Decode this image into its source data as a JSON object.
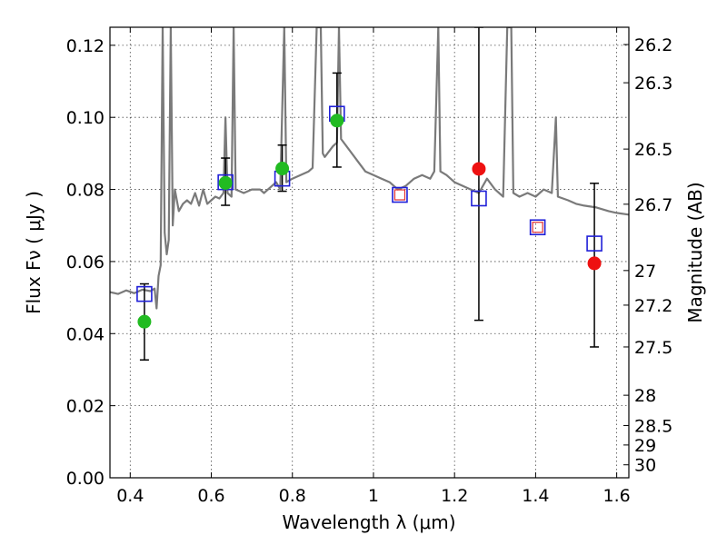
{
  "chart_data": {
    "type": "scatter",
    "title": "",
    "xlabel": "Wavelength  λ (μm)",
    "ylabel": "Flux  Fν  ( μJy )",
    "y2label": "Magnitude (AB)",
    "xlim": [
      0.35,
      1.63
    ],
    "ylim": [
      0.0,
      0.125
    ],
    "grid": true,
    "x_ticks": [
      0.4,
      0.6,
      0.8,
      1.0,
      1.2,
      1.4,
      1.6
    ],
    "x_tick_labels": [
      "0.4",
      "0.6",
      "0.8",
      "1",
      "1.2",
      "1.4",
      "1.6"
    ],
    "y_ticks": [
      0.0,
      0.02,
      0.04,
      0.06,
      0.08,
      0.1,
      0.12
    ],
    "y_tick_labels": [
      "0.00",
      "0.02",
      "0.04",
      "0.06",
      "0.08",
      "0.10",
      "0.12"
    ],
    "y2_ticks": [
      {
        "label": "26.2",
        "flux": 0.1202
      },
      {
        "label": "26.3",
        "flux": 0.1096
      },
      {
        "label": "26.5",
        "flux": 0.0912
      },
      {
        "label": "26.7",
        "flux": 0.0759
      },
      {
        "label": "27",
        "flux": 0.0575
      },
      {
        "label": "27.2",
        "flux": 0.0479
      },
      {
        "label": "27.5",
        "flux": 0.0363
      },
      {
        "label": "28",
        "flux": 0.0229
      },
      {
        "label": "28.5",
        "flux": 0.0145
      },
      {
        "label": "29",
        "flux": 0.0091
      },
      {
        "label": "30",
        "flux": 0.0036
      }
    ],
    "series": [
      {
        "kind": "line",
        "color": "#7a7a7a",
        "points": [
          [
            0.35,
            0.0515
          ],
          [
            0.37,
            0.051
          ],
          [
            0.39,
            0.052
          ],
          [
            0.41,
            0.0512
          ],
          [
            0.43,
            0.0522
          ],
          [
            0.45,
            0.0518
          ],
          [
            0.46,
            0.0525
          ],
          [
            0.465,
            0.047
          ],
          [
            0.47,
            0.056
          ],
          [
            0.475,
            0.059
          ],
          [
            0.48,
            0.125
          ],
          [
            0.485,
            0.068
          ],
          [
            0.49,
            0.062
          ],
          [
            0.495,
            0.066
          ],
          [
            0.5,
            0.125
          ],
          [
            0.505,
            0.07
          ],
          [
            0.51,
            0.08
          ],
          [
            0.52,
            0.074
          ],
          [
            0.53,
            0.076
          ],
          [
            0.54,
            0.077
          ],
          [
            0.55,
            0.076
          ],
          [
            0.56,
            0.079
          ],
          [
            0.57,
            0.0755
          ],
          [
            0.58,
            0.08
          ],
          [
            0.59,
            0.076
          ],
          [
            0.6,
            0.077
          ],
          [
            0.61,
            0.078
          ],
          [
            0.62,
            0.0775
          ],
          [
            0.63,
            0.079
          ],
          [
            0.635,
            0.1
          ],
          [
            0.64,
            0.079
          ],
          [
            0.65,
            0.078
          ],
          [
            0.655,
            0.125
          ],
          [
            0.66,
            0.08
          ],
          [
            0.67,
            0.0795
          ],
          [
            0.68,
            0.079
          ],
          [
            0.7,
            0.08
          ],
          [
            0.72,
            0.08
          ],
          [
            0.73,
            0.079
          ],
          [
            0.75,
            0.081
          ],
          [
            0.76,
            0.082
          ],
          [
            0.77,
            0.08
          ],
          [
            0.78,
            0.125
          ],
          [
            0.785,
            0.082
          ],
          [
            0.8,
            0.083
          ],
          [
            0.82,
            0.084
          ],
          [
            0.84,
            0.085
          ],
          [
            0.85,
            0.086
          ],
          [
            0.86,
            0.125
          ],
          [
            0.87,
            0.125
          ],
          [
            0.875,
            0.09
          ],
          [
            0.88,
            0.089
          ],
          [
            0.9,
            0.092
          ],
          [
            0.91,
            0.093
          ],
          [
            0.915,
            0.125
          ],
          [
            0.92,
            0.094
          ],
          [
            0.94,
            0.091
          ],
          [
            0.96,
            0.088
          ],
          [
            0.98,
            0.085
          ],
          [
            1.0,
            0.084
          ],
          [
            1.02,
            0.083
          ],
          [
            1.04,
            0.082
          ],
          [
            1.06,
            0.08
          ],
          [
            1.08,
            0.081
          ],
          [
            1.1,
            0.083
          ],
          [
            1.12,
            0.084
          ],
          [
            1.14,
            0.083
          ],
          [
            1.15,
            0.085
          ],
          [
            1.16,
            0.125
          ],
          [
            1.165,
            0.085
          ],
          [
            1.18,
            0.084
          ],
          [
            1.2,
            0.082
          ],
          [
            1.22,
            0.081
          ],
          [
            1.24,
            0.08
          ],
          [
            1.26,
            0.079
          ],
          [
            1.28,
            0.083
          ],
          [
            1.3,
            0.08
          ],
          [
            1.32,
            0.078
          ],
          [
            1.33,
            0.125
          ],
          [
            1.34,
            0.125
          ],
          [
            1.345,
            0.079
          ],
          [
            1.36,
            0.078
          ],
          [
            1.38,
            0.079
          ],
          [
            1.4,
            0.078
          ],
          [
            1.42,
            0.08
          ],
          [
            1.44,
            0.079
          ],
          [
            1.45,
            0.1
          ],
          [
            1.455,
            0.078
          ],
          [
            1.48,
            0.077
          ],
          [
            1.5,
            0.076
          ],
          [
            1.52,
            0.0755
          ],
          [
            1.55,
            0.075
          ],
          [
            1.58,
            0.074
          ],
          [
            1.6,
            0.0735
          ],
          [
            1.63,
            0.073
          ]
        ]
      },
      {
        "kind": "squares",
        "color": "#1f1fd8",
        "x": [
          0.435,
          0.635,
          0.775,
          0.91,
          1.065,
          1.26,
          1.405,
          1.545
        ],
        "y": [
          0.051,
          0.082,
          0.083,
          0.101,
          0.0785,
          0.0775,
          0.0695,
          0.065
        ]
      },
      {
        "kind": "inner-squares",
        "color": "#e03030",
        "x": [
          1.065,
          1.405
        ],
        "y": [
          0.0785,
          0.0695
        ]
      },
      {
        "kind": "circles",
        "color": "#22bb22",
        "x": [
          0.435,
          0.635,
          0.775,
          0.91
        ],
        "y": [
          0.0433,
          0.0818,
          0.0858,
          0.0991
        ],
        "yerr": [
          [
            0.0327,
            0.0538
          ],
          [
            0.0756,
            0.0887
          ],
          [
            0.0795,
            0.0923
          ],
          [
            0.0862,
            0.1123
          ]
        ]
      },
      {
        "kind": "circles",
        "color": "#ee1111",
        "x": [
          1.26,
          1.545
        ],
        "y": [
          0.0857,
          0.0595
        ],
        "yerr": [
          [
            0.0437,
            0.125
          ],
          [
            0.0363,
            0.0817
          ]
        ]
      }
    ]
  }
}
